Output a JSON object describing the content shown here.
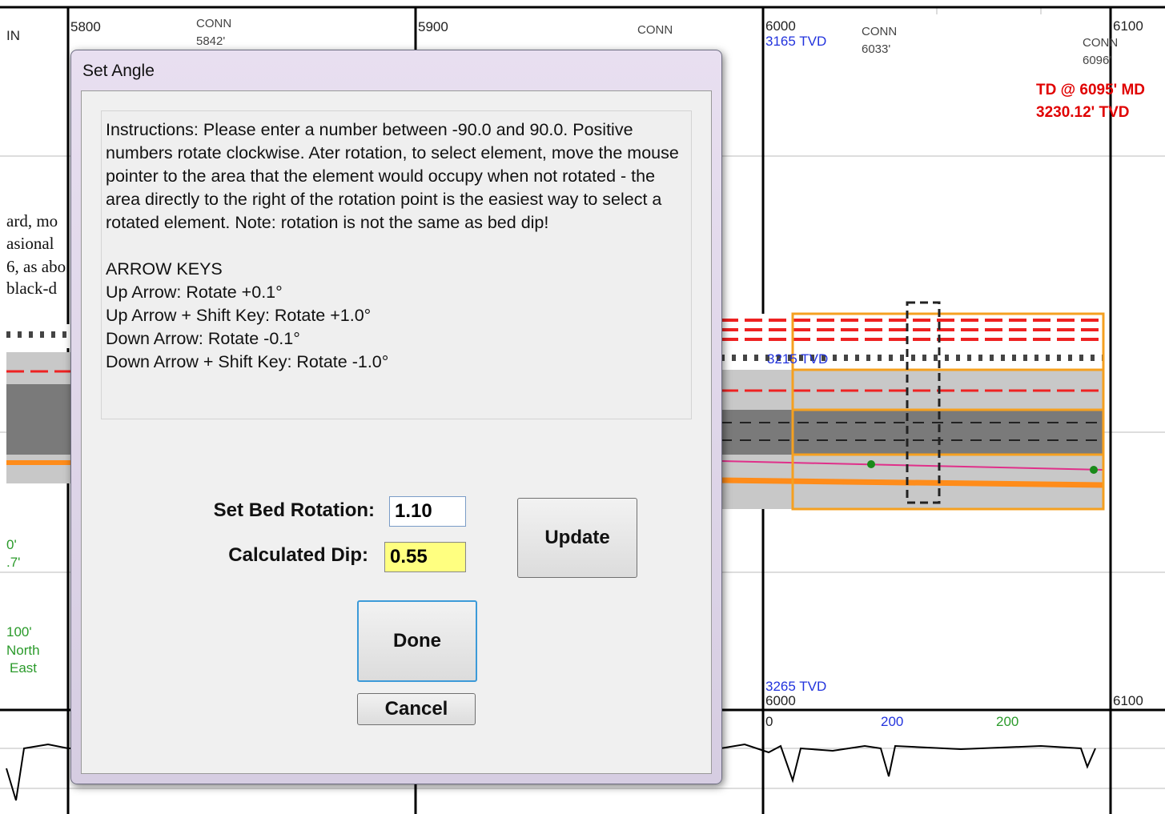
{
  "background": {
    "labels": [
      "IN",
      "5800",
      "CONN",
      "5842'",
      "5900",
      "CONN",
      "6000",
      "3165 TVD",
      "CONN",
      "6033'",
      "6100",
      "CONN",
      "6096'",
      "TD @ 6095' MD",
      "3230.12' TVD",
      "ard, mo",
      "asional",
      "6, as abo",
      "black-d",
      "3215 TVD",
      "0'",
      ".7'",
      "100'",
      "North",
      "East",
      "3265 TVD",
      "6000",
      "6100",
      "0",
      "200",
      "200"
    ]
  },
  "dialog": {
    "title": "Set Angle",
    "instructions": "Instructions: Please enter a number between -90.0 and 90.0. Positive numbers rotate clockwise. Ater rotation, to select element, move the mouse pointer to the area that the element would occupy when not rotated - the area directly to the right of the rotation point is the easiest way to select a rotated element. Note: rotation is not the same as bed dip!",
    "arrow_keys": {
      "heading": "ARROW KEYS",
      "lines": [
        "Up Arrow: Rotate  +0.1°",
        "Up Arrow + Shift Key:  Rotate +1.0°",
        "Down Arrow: Rotate  -0.1°",
        "Down Arrow + Shift Key: Rotate -1.0°"
      ]
    },
    "fields": {
      "rotation_label": "Set Bed Rotation:",
      "rotation_value": "1.10",
      "dip_label": "Calculated Dip:",
      "dip_value": "0.55"
    },
    "buttons": {
      "update": "Update",
      "done": "Done",
      "cancel": "Cancel"
    }
  }
}
